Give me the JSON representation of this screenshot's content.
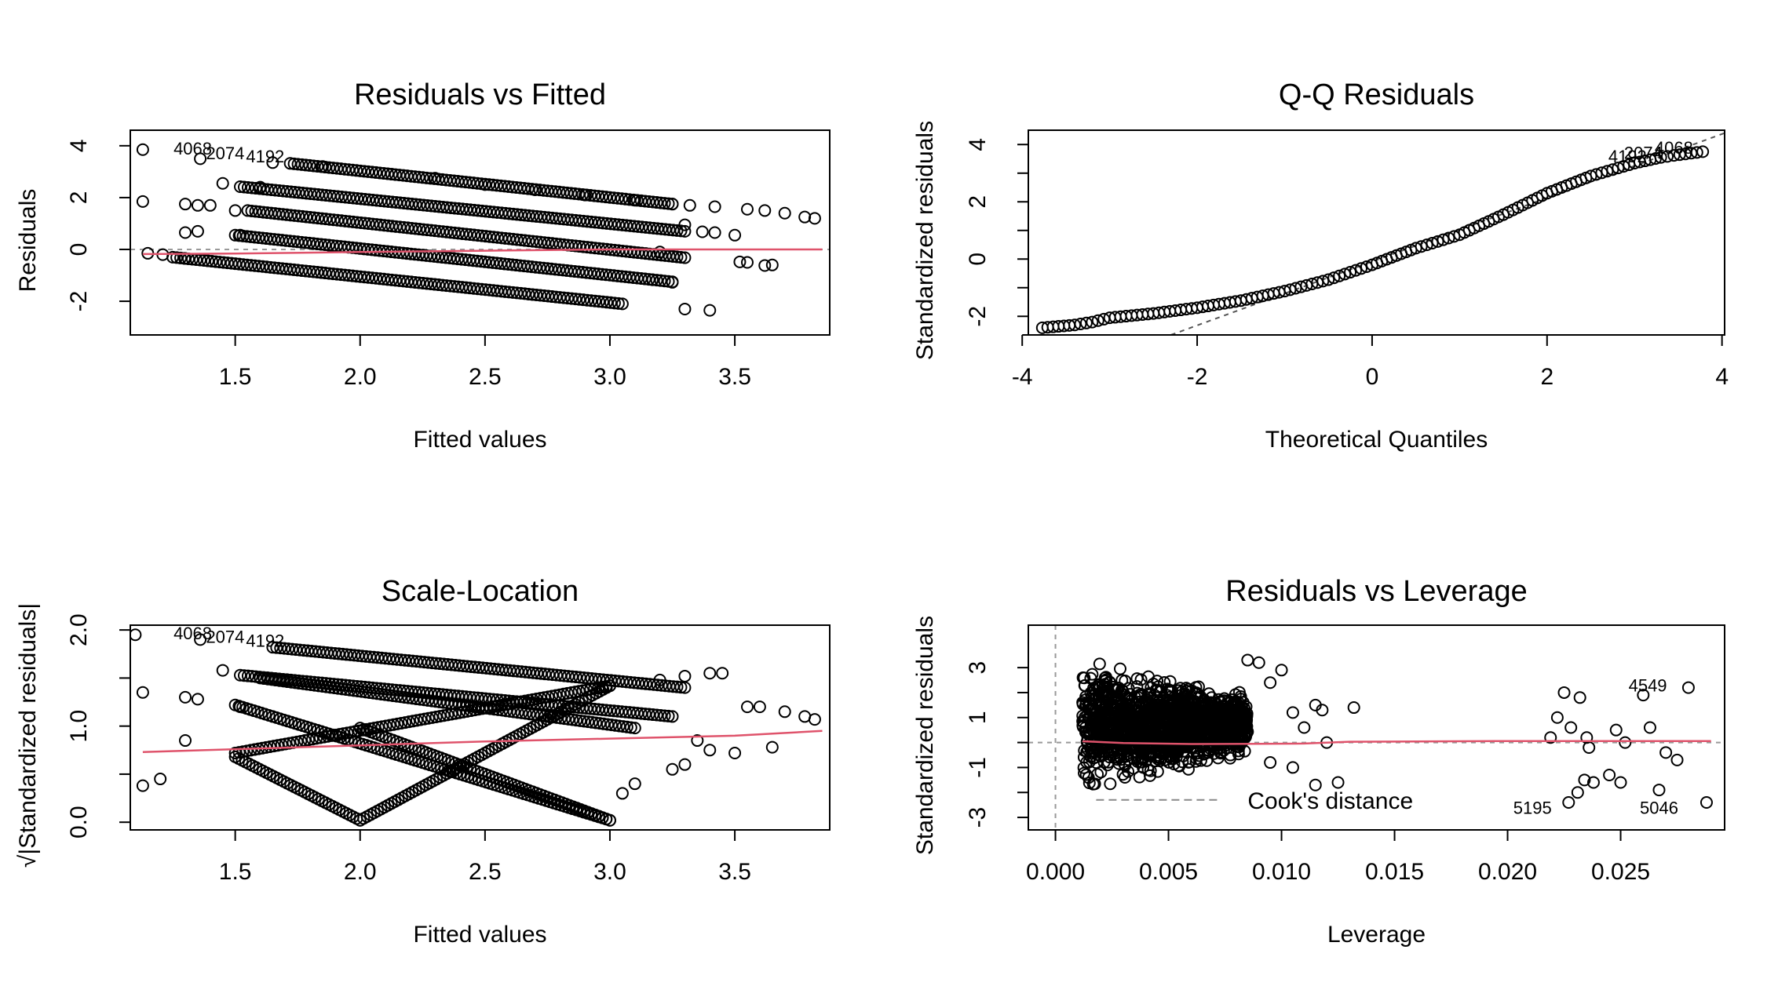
{
  "chart_data": [
    {
      "type": "scatter",
      "title": "Residuals vs Fitted",
      "xlabel": "Fitted values",
      "ylabel": "Residuals",
      "xlim": [
        1.08,
        3.88
      ],
      "ylim": [
        -3.3,
        4.6
      ],
      "xticks": [
        1.5,
        2.0,
        2.5,
        3.0,
        3.5
      ],
      "yticks": [
        -2,
        0,
        2,
        4
      ],
      "reference_line": {
        "type": "hline",
        "y": 0,
        "style": "dashed",
        "color": "#999999"
      },
      "series": [
        {
          "type": "points",
          "color": "#000000",
          "points": [
            [
              1.13,
              1.85
            ],
            [
              1.15,
              -0.15
            ],
            [
              1.21,
              -0.2
            ],
            [
              1.3,
              -0.35
            ],
            [
              1.3,
              0.65
            ],
            [
              1.3,
              1.75
            ],
            [
              1.35,
              0.7
            ],
            [
              1.35,
              1.7
            ],
            [
              1.4,
              1.7
            ],
            [
              1.45,
              2.55
            ],
            [
              1.5,
              1.5
            ],
            [
              1.52,
              0.55
            ],
            [
              1.6,
              2.4
            ],
            [
              1.65,
              3.35
            ],
            [
              1.85,
              3.2
            ],
            [
              2.3,
              2.75
            ],
            [
              2.5,
              2.5
            ],
            [
              2.7,
              2.3
            ],
            [
              2.9,
              2.1
            ],
            [
              3.1,
              1.9
            ],
            [
              3.25,
              1.75
            ],
            [
              3.32,
              1.7
            ],
            [
              3.42,
              1.65
            ],
            [
              3.3,
              0.95
            ],
            [
              3.2,
              -0.1
            ],
            [
              3.17,
              -1.17
            ],
            [
              3.25,
              -1.27
            ],
            [
              3.3,
              -2.3
            ],
            [
              3.4,
              -2.35
            ],
            [
              3.5,
              0.55
            ],
            [
              3.42,
              0.65
            ],
            [
              3.37,
              0.68
            ],
            [
              3.55,
              -0.5
            ],
            [
              3.52,
              -0.48
            ],
            [
              3.62,
              -0.62
            ],
            [
              3.65,
              -0.6
            ],
            [
              3.55,
              1.55
            ],
            [
              3.62,
              1.5
            ],
            [
              3.7,
              1.4
            ],
            [
              3.78,
              1.25
            ],
            [
              3.82,
              1.2
            ],
            [
              1.36,
              3.5
            ],
            [
              1.13,
              3.85
            ]
          ]
        },
        {
          "type": "bands",
          "color": "#000000",
          "bands": [
            {
              "from": [
                1.72,
                3.32
              ],
              "to": [
                3.25,
                1.75
              ]
            },
            {
              "from": [
                1.52,
                2.42
              ],
              "to": [
                3.3,
                0.7
              ]
            },
            {
              "from": [
                1.55,
                1.5
              ],
              "to": [
                3.3,
                -0.32
              ]
            },
            {
              "from": [
                1.5,
                0.55
              ],
              "to": [
                3.25,
                -1.25
              ]
            },
            {
              "from": [
                1.25,
                -0.3
              ],
              "to": [
                3.05,
                -2.1
              ]
            }
          ]
        },
        {
          "type": "smooth",
          "color": "#DF536B",
          "points": [
            [
              1.13,
              -0.18
            ],
            [
              1.5,
              -0.16
            ],
            [
              2.0,
              -0.1
            ],
            [
              2.5,
              -0.05
            ],
            [
              3.0,
              0.0
            ],
            [
              3.5,
              0.0
            ],
            [
              3.85,
              0.0
            ]
          ]
        }
      ],
      "labels": [
        {
          "text": "4068",
          "x": 1.33,
          "y": 3.9
        },
        {
          "text": "2074",
          "x": 1.46,
          "y": 3.72
        },
        {
          "text": "4192",
          "x": 1.62,
          "y": 3.6
        }
      ]
    },
    {
      "type": "scatter",
      "title": "Q-Q Residuals",
      "xlabel": "Theoretical Quantiles",
      "ylabel": "Standardized residuals",
      "xlim": [
        -3.93,
        4.03
      ],
      "ylim": [
        -2.65,
        4.5
      ],
      "xticks": [
        -4,
        -2,
        0,
        2,
        4
      ],
      "yticks": [
        -2,
        0,
        2,
        4
      ],
      "reference_line": {
        "type": "line",
        "from": [
          -2.3,
          -2.65
        ],
        "to": [
          4.03,
          4.4
        ],
        "style": "dashed",
        "color": "#555555"
      },
      "series": [
        {
          "type": "curve",
          "color": "#000000",
          "points": [
            [
              -3.77,
              -2.4
            ],
            [
              -3.4,
              -2.3
            ],
            [
              -3.2,
              -2.2
            ],
            [
              -3.0,
              -2.05
            ],
            [
              -2.5,
              -1.9
            ],
            [
              -2.0,
              -1.7
            ],
            [
              -1.5,
              -1.45
            ],
            [
              -1.0,
              -1.12
            ],
            [
              -0.5,
              -0.72
            ],
            [
              0.0,
              -0.2
            ],
            [
              0.5,
              0.38
            ],
            [
              1.0,
              0.85
            ],
            [
              1.5,
              1.55
            ],
            [
              2.0,
              2.3
            ],
            [
              2.5,
              2.9
            ],
            [
              3.0,
              3.35
            ],
            [
              3.3,
              3.55
            ],
            [
              3.45,
              3.62
            ],
            [
              3.78,
              3.75
            ]
          ]
        }
      ],
      "labels": [
        {
          "text": "4192",
          "x": 2.92,
          "y": 3.6
        },
        {
          "text": "2074",
          "x": 3.1,
          "y": 3.72
        },
        {
          "text": "4068",
          "x": 3.45,
          "y": 3.9
        }
      ]
    },
    {
      "type": "scatter",
      "title": "Scale-Location",
      "xlabel": "Fitted values",
      "ylabel": "√|Standardized residuals|",
      "xlim": [
        1.08,
        3.88
      ],
      "ylim": [
        -0.08,
        2.05
      ],
      "xticks": [
        1.5,
        2.0,
        2.5,
        3.0,
        3.5
      ],
      "yticks": [
        0.0,
        1.0,
        2.0
      ],
      "yticklabels": [
        "0.0",
        "1.0",
        "2.0"
      ],
      "series": [
        {
          "type": "points",
          "color": "#000000",
          "points": [
            [
              1.13,
              1.35
            ],
            [
              1.13,
              0.38
            ],
            [
              1.2,
              0.45
            ],
            [
              1.3,
              1.3
            ],
            [
              1.35,
              1.28
            ],
            [
              1.3,
              0.85
            ],
            [
              1.45,
              1.58
            ],
            [
              1.52,
              1.2
            ],
            [
              1.1,
              1.95
            ],
            [
              1.36,
              1.9
            ],
            [
              3.2,
              1.48
            ],
            [
              3.3,
              1.52
            ],
            [
              3.4,
              1.55
            ],
            [
              3.45,
              1.55
            ],
            [
              3.35,
              0.85
            ],
            [
              3.4,
              0.75
            ],
            [
              3.5,
              0.72
            ],
            [
              3.55,
              1.2
            ],
            [
              3.6,
              1.2
            ],
            [
              3.65,
              0.78
            ],
            [
              3.7,
              1.15
            ],
            [
              3.78,
              1.1
            ],
            [
              3.82,
              1.07
            ],
            [
              3.25,
              0.55
            ],
            [
              3.3,
              0.6
            ],
            [
              3.05,
              0.3
            ],
            [
              3.1,
              0.4
            ]
          ]
        },
        {
          "type": "bands",
          "color": "#000000",
          "bands": [
            {
              "from": [
                1.5,
                0.68
              ],
              "to": [
                2.0,
                0.02
              ]
            },
            {
              "from": [
                2.0,
                0.02
              ],
              "to": [
                3.0,
                1.42
              ]
            },
            {
              "from": [
                1.5,
                0.72
              ],
              "to": [
                3.0,
                1.42
              ]
            },
            {
              "from": [
                2.0,
                0.98
              ],
              "to": [
                3.0,
                0.02
              ]
            },
            {
              "from": [
                1.5,
                1.22
              ],
              "to": [
                3.0,
                0.02
              ]
            },
            {
              "from": [
                1.52,
                1.53
              ],
              "to": [
                3.25,
                1.1
              ]
            },
            {
              "from": [
                1.65,
                1.82
              ],
              "to": [
                3.3,
                1.4
              ]
            },
            {
              "from": [
                1.6,
                1.5
              ],
              "to": [
                3.1,
                0.98
              ]
            }
          ]
        },
        {
          "type": "smooth",
          "color": "#DF536B",
          "points": [
            [
              1.13,
              0.73
            ],
            [
              1.5,
              0.76
            ],
            [
              2.0,
              0.8
            ],
            [
              2.5,
              0.84
            ],
            [
              3.0,
              0.87
            ],
            [
              3.5,
              0.9
            ],
            [
              3.85,
              0.95
            ]
          ]
        }
      ],
      "labels": [
        {
          "text": "4068",
          "x": 1.33,
          "y": 1.97
        },
        {
          "text": "2074",
          "x": 1.46,
          "y": 1.93
        },
        {
          "text": "4192",
          "x": 1.62,
          "y": 1.89
        }
      ]
    },
    {
      "type": "scatter",
      "title": "Residuals vs Leverage",
      "xlabel": "Leverage",
      "ylabel": "Standardized residuals",
      "xlim": [
        -0.0012,
        0.0296
      ],
      "ylim": [
        -3.5,
        4.7
      ],
      "xticks": [
        0.0,
        0.005,
        0.01,
        0.015,
        0.02,
        0.025
      ],
      "xticklabels": [
        "0.000",
        "0.005",
        "0.010",
        "0.015",
        "0.020",
        "0.025"
      ],
      "yticks": [
        -3,
        -1,
        1,
        3
      ],
      "reference_lines": [
        {
          "type": "hline",
          "y": 0,
          "style": "dashed",
          "color": "#999999"
        },
        {
          "type": "vline",
          "x": 0,
          "style": "dashed",
          "color": "#999999"
        }
      ],
      "series": [
        {
          "type": "cluster",
          "color": "#000000",
          "x_range": [
            0.0012,
            0.0085
          ],
          "y_range": [
            -2.3,
            3.7
          ]
        },
        {
          "type": "points",
          "color": "#000000",
          "points": [
            [
              0.0085,
              3.3
            ],
            [
              0.009,
              3.2
            ],
            [
              0.0095,
              2.4
            ],
            [
              0.01,
              2.9
            ],
            [
              0.0105,
              1.2
            ],
            [
              0.0115,
              1.5
            ],
            [
              0.0118,
              1.3
            ],
            [
              0.0132,
              1.4
            ],
            [
              0.0115,
              -1.7
            ],
            [
              0.0125,
              -1.6
            ],
            [
              0.0095,
              -0.8
            ],
            [
              0.0105,
              -1.0
            ],
            [
              0.011,
              0.6
            ],
            [
              0.012,
              0.0
            ],
            [
              0.0225,
              2.0
            ],
            [
              0.0232,
              1.8
            ],
            [
              0.0222,
              1.0
            ],
            [
              0.0228,
              0.6
            ],
            [
              0.0236,
              -0.2
            ],
            [
              0.0234,
              -1.5
            ],
            [
              0.0238,
              -1.6
            ],
            [
              0.0227,
              -2.4
            ],
            [
              0.0231,
              -2.0
            ],
            [
              0.0248,
              0.5
            ],
            [
              0.0252,
              0.0
            ],
            [
              0.025,
              -1.6
            ],
            [
              0.026,
              1.9
            ],
            [
              0.027,
              -0.4
            ],
            [
              0.0263,
              0.6
            ],
            [
              0.0275,
              -0.7
            ],
            [
              0.028,
              2.2
            ],
            [
              0.0267,
              -1.9
            ],
            [
              0.0288,
              -2.4
            ],
            [
              0.0245,
              -1.3
            ],
            [
              0.0219,
              0.2
            ],
            [
              0.0235,
              0.2
            ]
          ]
        },
        {
          "type": "smooth",
          "color": "#DF536B",
          "points": [
            [
              0.0012,
              0.05
            ],
            [
              0.003,
              -0.02
            ],
            [
              0.006,
              -0.06
            ],
            [
              0.009,
              -0.05
            ],
            [
              0.011,
              -0.04
            ],
            [
              0.013,
              0.03
            ],
            [
              0.02,
              0.06
            ],
            [
              0.029,
              0.06
            ]
          ]
        }
      ],
      "cooks_distance": {
        "label": "Cook's distance",
        "color": "#888888"
      },
      "labels": [
        {
          "text": "4549",
          "x": 0.0262,
          "y": 2.3
        },
        {
          "text": "5195",
          "x": 0.0211,
          "y": -2.6
        },
        {
          "text": "5046",
          "x": 0.0267,
          "y": -2.6
        }
      ]
    }
  ]
}
